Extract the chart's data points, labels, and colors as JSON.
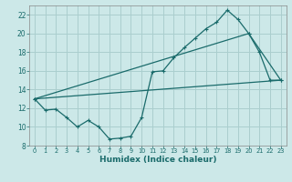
{
  "xlabel": "Humidex (Indice chaleur)",
  "bg_color": "#cce8e8",
  "grid_color": "#aacece",
  "line_color": "#1a6b6b",
  "xlim": [
    -0.5,
    23.5
  ],
  "ylim": [
    8,
    23
  ],
  "xticks": [
    0,
    1,
    2,
    3,
    4,
    5,
    6,
    7,
    8,
    9,
    10,
    11,
    12,
    13,
    14,
    15,
    16,
    17,
    18,
    19,
    20,
    21,
    22,
    23
  ],
  "yticks": [
    8,
    10,
    12,
    14,
    16,
    18,
    20,
    22
  ],
  "line1_x": [
    0,
    1,
    2,
    3,
    4,
    5,
    6,
    7,
    8,
    9,
    10,
    11,
    12,
    13,
    14,
    15,
    16,
    17,
    18,
    19,
    20,
    21,
    22,
    23
  ],
  "line1_y": [
    13.0,
    11.8,
    11.9,
    11.0,
    10.0,
    10.7,
    10.0,
    8.7,
    8.8,
    9.0,
    11.0,
    15.9,
    16.0,
    17.4,
    18.5,
    19.5,
    20.5,
    21.2,
    22.5,
    21.5,
    20.0,
    18.0,
    15.0,
    15.0
  ],
  "line2_x": [
    0,
    20,
    23
  ],
  "line2_y": [
    13.0,
    20.0,
    15.0
  ],
  "line3_x": [
    0,
    23
  ],
  "line3_y": [
    13.0,
    15.0
  ]
}
